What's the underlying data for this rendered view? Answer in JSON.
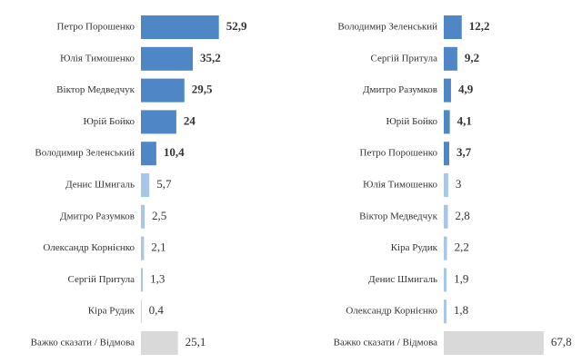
{
  "chart_data": [
    {
      "type": "bar",
      "orientation": "horizontal",
      "categories": [
        "Петро Порошенко",
        "Юлія Тимошенко",
        "Віктор Медведчук",
        "Юрій Бойко",
        "Володимир Зеленський",
        "Денис Шмигаль",
        "Дмитро Разумков",
        "Олександр Корнієнко",
        "Сергій Притула",
        "Кіра Рудик",
        "Важко сказати / Відмова"
      ],
      "values": [
        52.9,
        35.2,
        29.5,
        24,
        10.4,
        5.7,
        2.5,
        2.1,
        1.3,
        0.4,
        25.1
      ],
      "value_labels": [
        "52,9",
        "35,2",
        "29,5",
        "24",
        "10,4",
        "5,7",
        "2,5",
        "2,1",
        "1,3",
        "0,4",
        "25,1"
      ],
      "colors": [
        "#4f86c6",
        "#4f86c6",
        "#4f86c6",
        "#4f86c6",
        "#4f86c6",
        "#a8c6e7",
        "#a8c6e7",
        "#a8c6e7",
        "#a8c6e7",
        "#a8c6e7",
        "#d9d9d9"
      ]
    },
    {
      "type": "bar",
      "orientation": "horizontal",
      "categories": [
        "Володимир Зеленський",
        "Сергій Притула",
        "Дмитро Разумков",
        "Юрій Бойко",
        "Петро Порошенко",
        "Юлія Тимошенко",
        "Віктор Медведчук",
        "Кіра Рудик",
        "Денис Шмигаль",
        "Олександр Корнієнко",
        "Важко сказати / Відмова"
      ],
      "values": [
        12.2,
        9.2,
        4.9,
        4.1,
        3.7,
        3,
        2.8,
        2.2,
        1.9,
        1.8,
        67.8
      ],
      "value_labels": [
        "12,2",
        "9,2",
        "4,9",
        "4,1",
        "3,7",
        "3",
        "2,8",
        "2,2",
        "1,9",
        "1,8",
        "67,8"
      ],
      "colors": [
        "#4f86c6",
        "#4f86c6",
        "#4f86c6",
        "#4f86c6",
        "#4f86c6",
        "#a8c6e7",
        "#a8c6e7",
        "#a8c6e7",
        "#a8c6e7",
        "#a8c6e7",
        "#d9d9d9"
      ]
    }
  ]
}
